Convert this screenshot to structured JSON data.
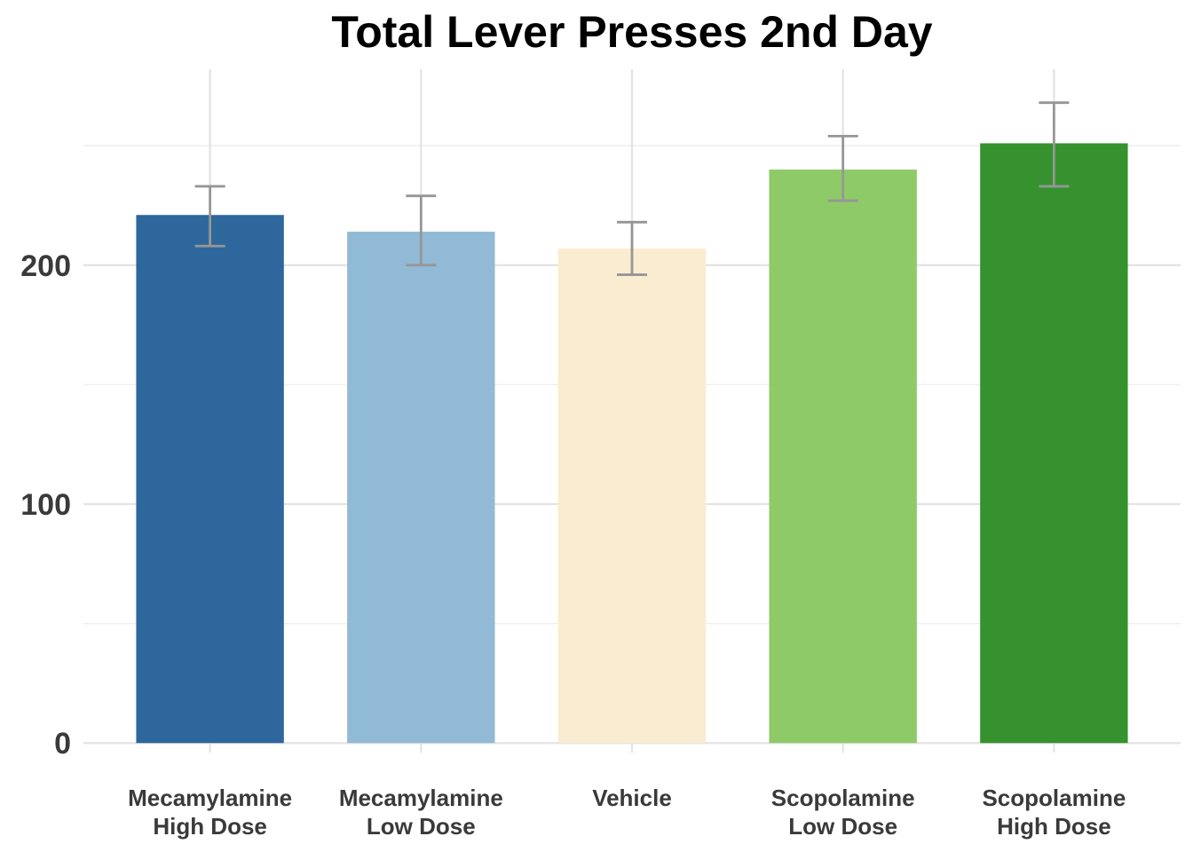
{
  "chart_data": {
    "type": "bar",
    "title": "Total Lever Presses 2nd Day",
    "xlabel": "",
    "ylabel": "",
    "categories": [
      [
        "Mecamylamine",
        "High Dose"
      ],
      [
        "Mecamylamine",
        "Low Dose"
      ],
      [
        "Vehicle"
      ],
      [
        "Scopolamine",
        "Low Dose"
      ],
      [
        "Scopolamine",
        "High Dose"
      ]
    ],
    "values": [
      221,
      214,
      207,
      240,
      251
    ],
    "error_low": [
      208,
      200,
      196,
      227,
      233
    ],
    "error_high": [
      233,
      229,
      218,
      254,
      268
    ],
    "colors": [
      "#2e679c",
      "#90bad5",
      "#faecd0",
      "#8fca69",
      "#35922f"
    ],
    "error_color": "#969696",
    "yticks": [
      0,
      100,
      200
    ],
    "ylim": [
      -4,
      282
    ],
    "grid": true
  }
}
